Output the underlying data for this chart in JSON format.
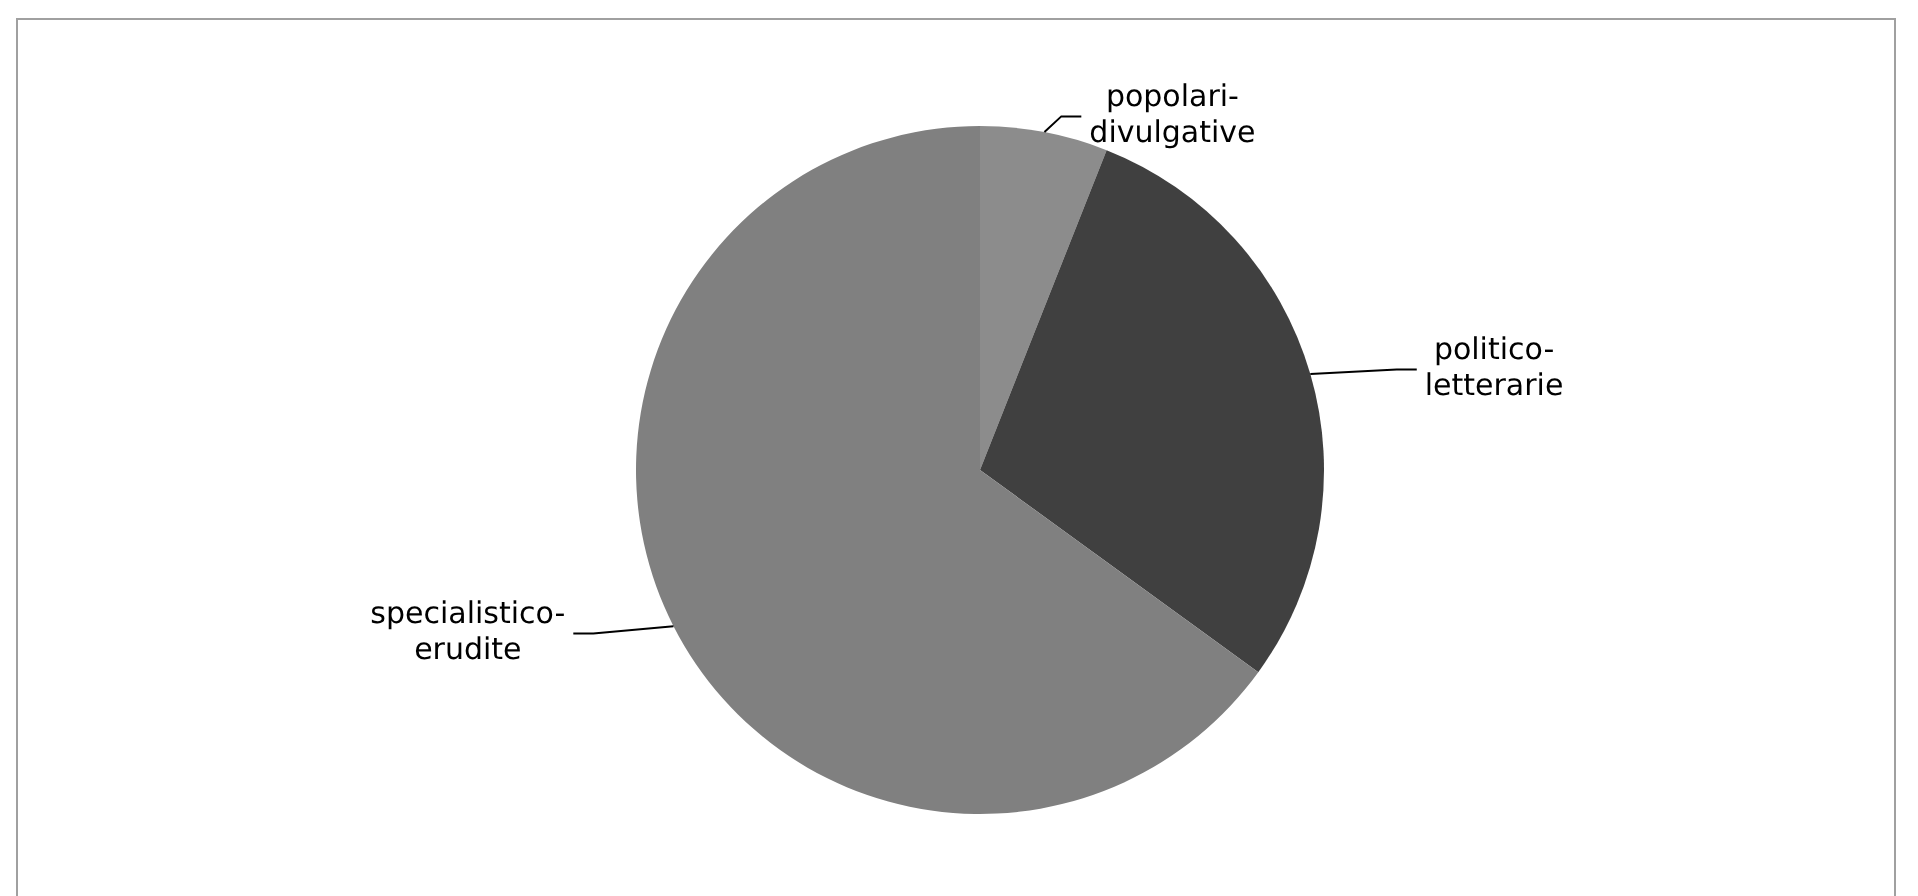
{
  "chart_data": {
    "type": "pie",
    "categories": [
      "popolari-divulgative",
      "politico-letterarie",
      "specialistico-erudite"
    ],
    "values": [
      6,
      29,
      65
    ],
    "colors": [
      "#8c8c8c",
      "#404040",
      "#808080"
    ]
  }
}
